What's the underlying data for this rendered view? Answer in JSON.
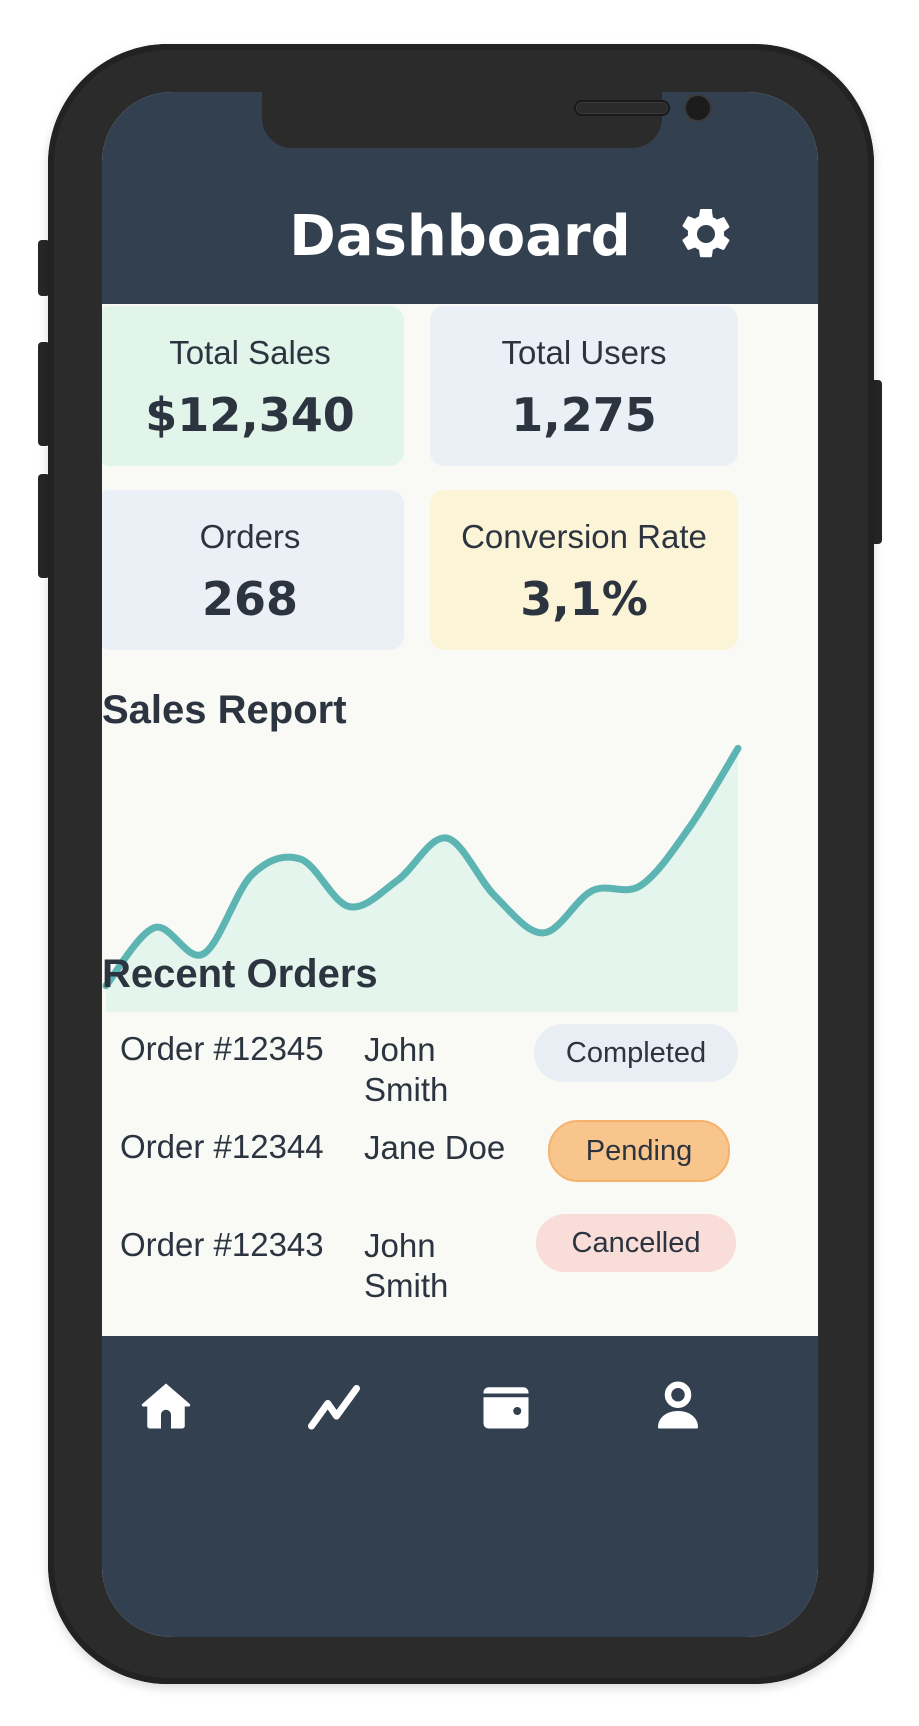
{
  "colors": {
    "header_bg": "#33404f",
    "screen_bg": "#f9f9f6",
    "card_sales": "#e2f5ea",
    "card_users": "#ebf0f6",
    "card_orders": "#ebf0f6",
    "card_conversion": "#fbf4d6",
    "chart_line": "#5cb5b3",
    "chart_fill": "#e3f5ec",
    "badge_completed": "#e9eef4",
    "badge_pending": "#f8c68d",
    "badge_cancelled": "#f9ddd8"
  },
  "header": {
    "title": "Dashboard",
    "settings_icon": "gear-icon"
  },
  "stats": [
    {
      "label": "Total Sales",
      "value": "$12,340"
    },
    {
      "label": "Total Users",
      "value": "1,275"
    },
    {
      "label": "Orders",
      "value": "268"
    },
    {
      "label": "Conversion Rate",
      "value": "3,1%"
    }
  ],
  "sales_report": {
    "title": "Sales Report"
  },
  "chart_data": {
    "type": "area",
    "title": "Sales Report",
    "xlabel": "",
    "ylabel": "",
    "grid": false,
    "legend": "none",
    "x": [
      0,
      1,
      2,
      3,
      4,
      5,
      6,
      7,
      8,
      9,
      10,
      11,
      12,
      13
    ],
    "values": [
      10,
      32,
      22,
      52,
      58,
      40,
      50,
      66,
      44,
      30,
      46,
      48,
      70,
      100
    ],
    "ylim": [
      0,
      110
    ]
  },
  "recent_orders": {
    "title": "Recent Orders",
    "rows": [
      {
        "id": "Order #12345",
        "name": "John Smith",
        "status": "Completed",
        "status_key": "completed"
      },
      {
        "id": "Order #12344",
        "name": "Jane Doe",
        "status": "Pending",
        "status_key": "pending"
      },
      {
        "id": "Order #12343",
        "name": "John Smith",
        "status": "Cancelled",
        "status_key": "cancelled"
      }
    ]
  },
  "nav": [
    {
      "icon": "home-icon"
    },
    {
      "icon": "trend-chart-icon"
    },
    {
      "icon": "wallet-icon"
    },
    {
      "icon": "user-icon"
    }
  ]
}
